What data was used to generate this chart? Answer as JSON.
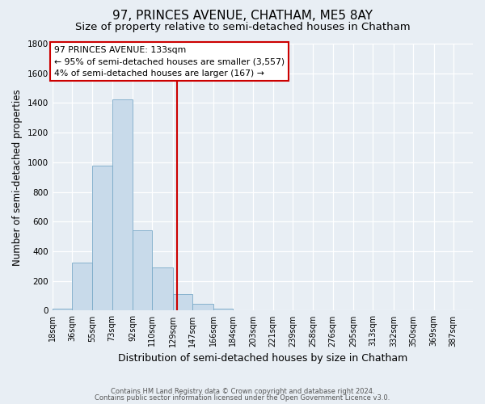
{
  "title": "97, PRINCES AVENUE, CHATHAM, ME5 8AY",
  "subtitle": "Size of property relative to semi-detached houses in Chatham",
  "xlabel": "Distribution of semi-detached houses by size in Chatham",
  "ylabel": "Number of semi-detached properties",
  "bin_labels": [
    "18sqm",
    "36sqm",
    "55sqm",
    "73sqm",
    "92sqm",
    "110sqm",
    "129sqm",
    "147sqm",
    "166sqm",
    "184sqm",
    "203sqm",
    "221sqm",
    "239sqm",
    "258sqm",
    "276sqm",
    "295sqm",
    "313sqm",
    "332sqm",
    "350sqm",
    "369sqm",
    "387sqm"
  ],
  "bin_edges": [
    18,
    36,
    55,
    73,
    92,
    110,
    129,
    147,
    166,
    184,
    203,
    221,
    239,
    258,
    276,
    295,
    313,
    332,
    350,
    369,
    387
  ],
  "bar_heights": [
    15,
    325,
    980,
    1425,
    540,
    290,
    110,
    45,
    15,
    0,
    0,
    0,
    0,
    0,
    0,
    0,
    0,
    0,
    0,
    0
  ],
  "bar_color": "#c8daea",
  "bar_edge_color": "#7aaac8",
  "ylim": [
    0,
    1800
  ],
  "yticks": [
    0,
    200,
    400,
    600,
    800,
    1000,
    1200,
    1400,
    1600,
    1800
  ],
  "vline_x": 133,
  "vline_color": "#cc0000",
  "annotation_title": "97 PRINCES AVENUE: 133sqm",
  "annotation_line1": "← 95% of semi-detached houses are smaller (3,557)",
  "annotation_line2": "4% of semi-detached houses are larger (167) →",
  "annotation_box_color": "#ffffff",
  "annotation_box_edge": "#cc0000",
  "footer1": "Contains HM Land Registry data © Crown copyright and database right 2024.",
  "footer2": "Contains public sector information licensed under the Open Government Licence v3.0.",
  "background_color": "#e8eef4",
  "grid_color": "#ffffff",
  "title_fontsize": 11,
  "subtitle_fontsize": 9.5,
  "ylabel_fontsize": 8.5,
  "xlabel_fontsize": 9
}
